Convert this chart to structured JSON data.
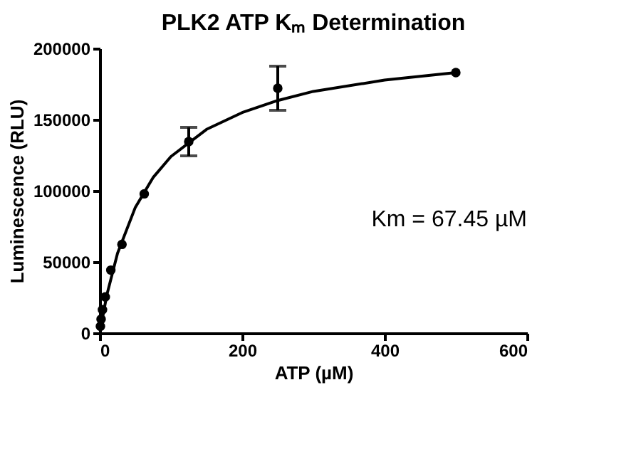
{
  "chart_data": {
    "type": "scatter",
    "title": "PLK2 ATP Kₘ Determination",
    "xlabel": "ATP (µM)",
    "ylabel": "Luminescence (RLU)",
    "xlim": [
      0,
      600
    ],
    "xticks": [
      0,
      200,
      400,
      600
    ],
    "ylim": [
      0,
      200000
    ],
    "yticks": [
      0,
      50000,
      100000,
      150000,
      200000
    ],
    "grid": false,
    "annotations": [
      "Km = 67.45 µM"
    ],
    "series": [
      {
        "marker": "circle",
        "color": "#000000",
        "x": [
          0.98,
          1.95,
          3.9,
          7.8,
          15.6,
          31.25,
          62.5,
          125,
          250,
          500
        ],
        "values": [
          4700,
          9700,
          16400,
          25400,
          44200,
          62300,
          97800,
          134500,
          172000,
          183000
        ],
        "errors": [
          null,
          null,
          null,
          null,
          null,
          null,
          null,
          10000,
          15500,
          null
        ]
      },
      {
        "type": "line",
        "marker": "none",
        "line_style": "solid",
        "color": "#000000",
        "x": [
          0,
          10,
          25,
          50,
          75,
          100,
          150,
          200,
          250,
          300,
          400,
          500
        ],
        "values": [
          0,
          26800,
          56000,
          88300,
          109300,
          124000,
          143100,
          154900,
          163400,
          169800,
          177700,
          183000
        ]
      }
    ]
  }
}
